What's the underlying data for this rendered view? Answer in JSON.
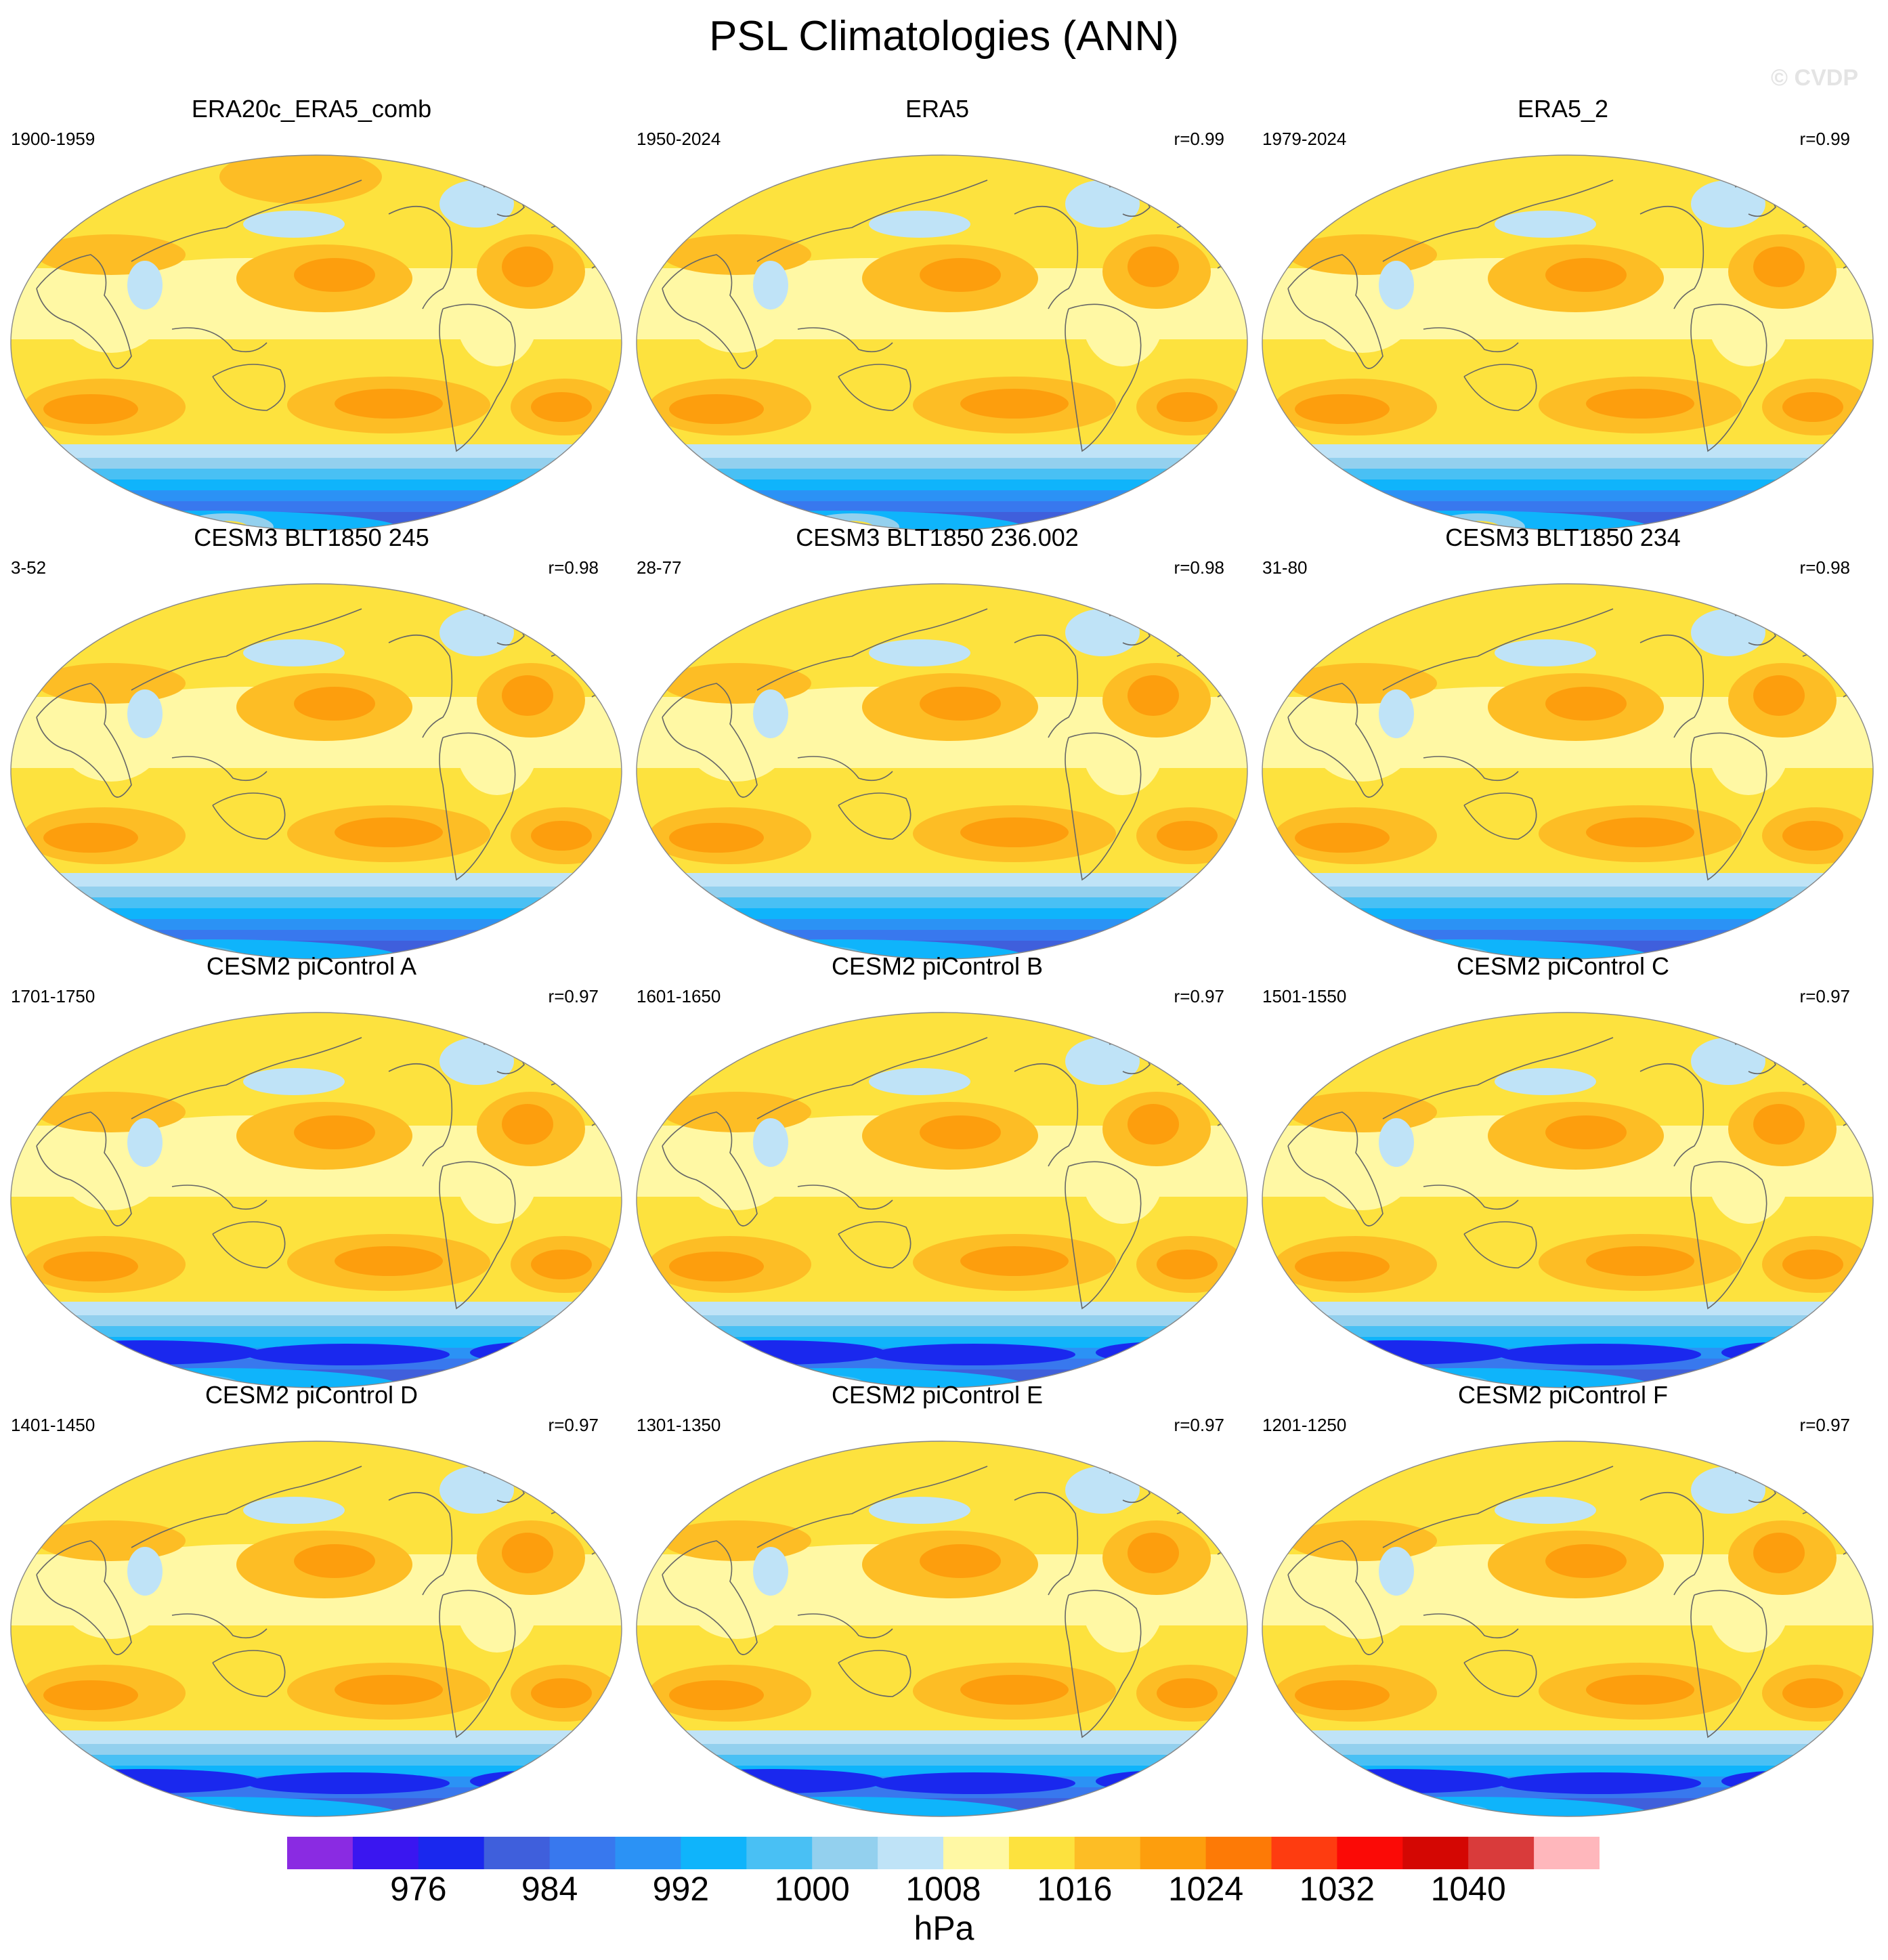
{
  "page": {
    "title": "PSL Climatologies (ANN)",
    "watermark": "© CVDP"
  },
  "colors": {
    "contour_levels_hPa": [
      972,
      976,
      980,
      984,
      988,
      992,
      996,
      1000,
      1004,
      1008,
      1012,
      1016,
      1020,
      1024,
      1028,
      1032,
      1036,
      1040,
      1044
    ],
    "palette": [
      "#8a2be2",
      "#3a16f0",
      "#1a28ee",
      "#3f5fdc",
      "#3878ee",
      "#2b92f5",
      "#0fb4fb",
      "#49c0f4",
      "#93d0ee",
      "#bfe3f7",
      "#fff8a4",
      "#fde23e",
      "#fdbd25",
      "#fd9e0d",
      "#fd7a06",
      "#fe3c10",
      "#fb0a06",
      "#d40703",
      "#d93b3b",
      "#ffb7bc"
    ],
    "coastline": "#666666"
  },
  "chart_data": {
    "type": "heatmap",
    "title": "PSL Climatologies (ANN)",
    "projection": "Robinson-like (Pacific-centered)",
    "variable": "PSL",
    "units": "hPa",
    "colorbar": {
      "tick_labels": [
        "976",
        "984",
        "992",
        "1000",
        "1008",
        "1016",
        "1024",
        "1032",
        "1040"
      ],
      "label": "hPa"
    },
    "panels": [
      {
        "name": "ERA20c_ERA5_comb",
        "period": "1900-1959",
        "r": "",
        "antarctic_high": true,
        "south_deep": false,
        "north_high": true
      },
      {
        "name": "ERA5",
        "period": "1950-2024",
        "r": "r=0.99",
        "antarctic_high": true,
        "south_deep": false,
        "north_high": false
      },
      {
        "name": "ERA5_2",
        "period": "1979-2024",
        "r": "r=0.99",
        "antarctic_high": true,
        "south_deep": false,
        "north_high": false
      },
      {
        "name": "CESM3 BLT1850 245",
        "period": "3-52",
        "r": "r=0.98",
        "antarctic_high": false,
        "south_deep": false,
        "north_high": false
      },
      {
        "name": "CESM3 BLT1850 236.002",
        "period": "28-77",
        "r": "r=0.98",
        "antarctic_high": false,
        "south_deep": false,
        "north_high": false
      },
      {
        "name": "CESM3 BLT1850 234",
        "period": "31-80",
        "r": "r=0.98",
        "antarctic_high": false,
        "south_deep": false,
        "north_high": false
      },
      {
        "name": "CESM2 piControl A",
        "period": "1701-1750",
        "r": "r=0.97",
        "antarctic_high": false,
        "south_deep": true,
        "north_high": false
      },
      {
        "name": "CESM2 piControl B",
        "period": "1601-1650",
        "r": "r=0.97",
        "antarctic_high": false,
        "south_deep": true,
        "north_high": false
      },
      {
        "name": "CESM2 piControl C",
        "period": "1501-1550",
        "r": "r=0.97",
        "antarctic_high": false,
        "south_deep": true,
        "north_high": false
      },
      {
        "name": "CESM2 piControl D",
        "period": "1401-1450",
        "r": "r=0.97",
        "antarctic_high": false,
        "south_deep": true,
        "north_high": false
      },
      {
        "name": "CESM2 piControl E",
        "period": "1301-1350",
        "r": "r=0.97",
        "antarctic_high": false,
        "south_deep": true,
        "north_high": false
      },
      {
        "name": "CESM2 piControl F",
        "period": "1201-1250",
        "r": "r=0.97",
        "antarctic_high": false,
        "south_deep": true,
        "north_high": false
      }
    ]
  }
}
